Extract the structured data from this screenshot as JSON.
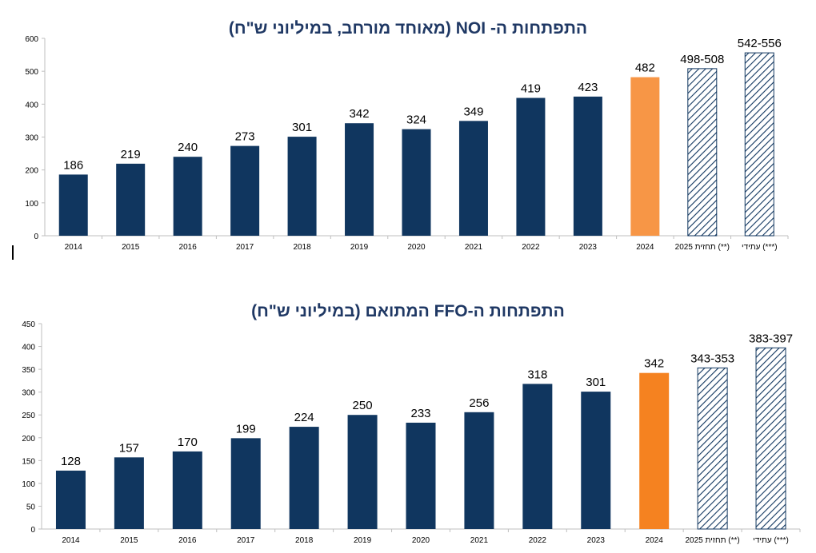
{
  "colors": {
    "historic": "#10365f",
    "noi_2024": "#f79646",
    "ffo_2024": "#f58220",
    "hatch": "#10365f",
    "title": "#1f3864",
    "axis": "#bfbfbf"
  },
  "chart_data": [
    {
      "type": "bar",
      "title": "התפתחות ה- NOI (מאוחד מורחב, במיליוני ש\"ח)",
      "xlabel": "",
      "ylabel": "",
      "ylim": [
        0,
        600
      ],
      "yticks": [
        "0",
        "100",
        "200",
        "300",
        "400",
        "500",
        "600"
      ],
      "categories": [
        "2014",
        "2015",
        "2016",
        "2017",
        "2018",
        "2019",
        "2020",
        "2021",
        "2022",
        "2023",
        "2024",
        "תחזית 2025 (**)",
        "עתידי (***)"
      ],
      "values": [
        186,
        219,
        240,
        273,
        301,
        342,
        324,
        349,
        419,
        423,
        482,
        508,
        556
      ],
      "labels": [
        "186",
        "219",
        "240",
        "273",
        "301",
        "342",
        "324",
        "349",
        "419",
        "423",
        "482",
        "498-508",
        "542-556"
      ],
      "styles": [
        "solid",
        "solid",
        "solid",
        "solid",
        "solid",
        "solid",
        "solid",
        "solid",
        "solid",
        "solid",
        "orange",
        "hatched",
        "hatched"
      ],
      "grid": false
    },
    {
      "type": "bar",
      "title": "התפתחות ה-FFO המתואם  (במיליוני ש\"ח)",
      "xlabel": "",
      "ylabel": "",
      "ylim": [
        0,
        450
      ],
      "yticks": [
        "0",
        "50",
        "100",
        "150",
        "200",
        "250",
        "300",
        "350",
        "400",
        "450"
      ],
      "categories": [
        "2014",
        "2015",
        "2016",
        "2017",
        "2018",
        "2019",
        "2020",
        "2021",
        "2022",
        "2023",
        "2024",
        "תחזית 2025 (**)",
        "עתידי (***)"
      ],
      "values": [
        128,
        157,
        170,
        199,
        224,
        250,
        233,
        256,
        318,
        301,
        342,
        353,
        397
      ],
      "labels": [
        "128",
        "157",
        "170",
        "199",
        "224",
        "250",
        "233",
        "256",
        "318",
        "301",
        "342",
        "343-353",
        "383-397"
      ],
      "styles": [
        "solid",
        "solid",
        "solid",
        "solid",
        "solid",
        "solid",
        "solid",
        "solid",
        "solid",
        "solid",
        "orange",
        "hatched",
        "hatched"
      ],
      "grid": false
    }
  ]
}
